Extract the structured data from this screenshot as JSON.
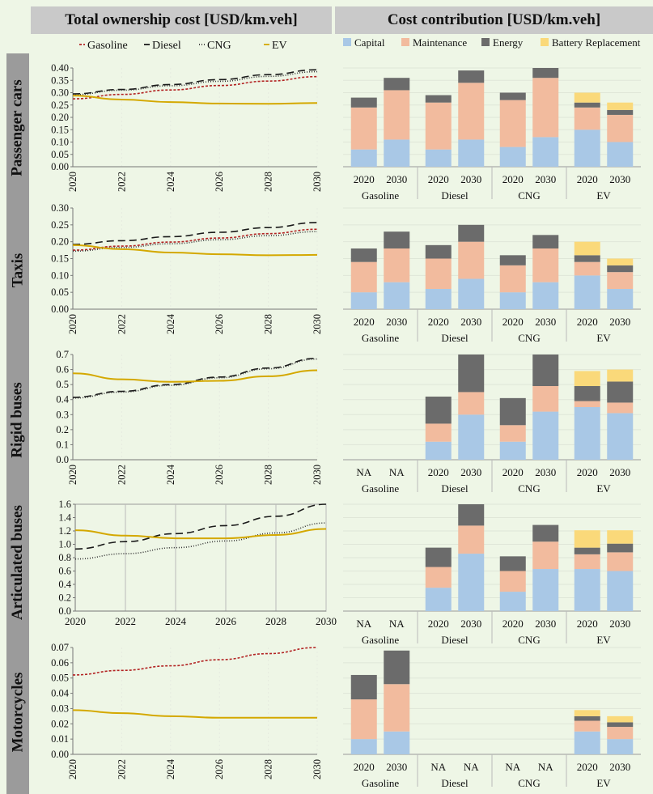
{
  "headers": {
    "left": "Total ownership cost [USD/km.veh]",
    "right": "Cost contribution [USD/km.veh]"
  },
  "line_legend": [
    {
      "key": "Gasoline",
      "label": "Gasoline",
      "color": "#b22222",
      "dash": "3,2"
    },
    {
      "key": "Diesel",
      "label": "Diesel",
      "color": "#1a1a1a",
      "dash": "9,5"
    },
    {
      "key": "CNG",
      "label": "CNG",
      "color": "#333333",
      "dash": "1,2"
    },
    {
      "key": "EV",
      "label": "EV",
      "color": "#d4a800",
      "dash": ""
    }
  ],
  "bar_legend": [
    {
      "key": "capital",
      "label": "Capital",
      "color": "#a9c8e6"
    },
    {
      "key": "maintenance",
      "label": "Maintenance",
      "color": "#f2bb9e"
    },
    {
      "key": "energy",
      "label": "Energy",
      "color": "#6b6b6b"
    },
    {
      "key": "battery",
      "label": "Battery Replacement",
      "color": "#fad97a"
    }
  ],
  "bar_group_labels": [
    "Gasoline",
    "Diesel",
    "CNG",
    "EV"
  ],
  "bar_year_labels": [
    "2020",
    "2030"
  ],
  "na_label": "NA",
  "chart_data": [
    {
      "type": "line",
      "row_label": "Passenger cars",
      "x": [
        2020,
        2022,
        2024,
        2026,
        2028,
        2030
      ],
      "xticks": [
        "2020",
        "2022",
        "2024",
        "2026",
        "2028",
        "2030"
      ],
      "x_rotated": true,
      "yticks": [
        "0.00",
        "0.05",
        "0.10",
        "0.15",
        "0.20",
        "0.25",
        "0.30",
        "0.35",
        "0.40"
      ],
      "ylim": [
        0,
        0.4
      ],
      "grid": false,
      "series": [
        {
          "name": "Gasoline",
          "values": [
            0.275,
            0.293,
            0.311,
            0.329,
            0.347,
            0.365
          ]
        },
        {
          "name": "Diesel",
          "values": [
            0.295,
            0.313,
            0.333,
            0.353,
            0.373,
            0.393
          ]
        },
        {
          "name": "CNG",
          "values": [
            0.292,
            0.31,
            0.328,
            0.346,
            0.366,
            0.385
          ]
        },
        {
          "name": "EV",
          "values": [
            0.288,
            0.272,
            0.262,
            0.256,
            0.255,
            0.258
          ]
        }
      ]
    },
    {
      "type": "line",
      "row_label": "Taxis",
      "x": [
        2020,
        2022,
        2024,
        2026,
        2028,
        2030
      ],
      "xticks": [
        "2020",
        "2022",
        "2024",
        "2026",
        "2028",
        "2030"
      ],
      "x_rotated": true,
      "yticks": [
        "0.00",
        "0.05",
        "0.10",
        "0.15",
        "0.20",
        "0.25",
        "0.30"
      ],
      "ylim": [
        0,
        0.3
      ],
      "grid": false,
      "series": [
        {
          "name": "Gasoline",
          "values": [
            0.175,
            0.187,
            0.199,
            0.211,
            0.224,
            0.237
          ]
        },
        {
          "name": "Diesel",
          "values": [
            0.192,
            0.203,
            0.215,
            0.228,
            0.242,
            0.257
          ]
        },
        {
          "name": "CNG",
          "values": [
            0.172,
            0.183,
            0.194,
            0.206,
            0.218,
            0.23
          ]
        },
        {
          "name": "EV",
          "values": [
            0.19,
            0.178,
            0.168,
            0.163,
            0.16,
            0.161
          ]
        }
      ]
    },
    {
      "type": "line",
      "row_label": "Rigid buses",
      "x": [
        2020,
        2022,
        2024,
        2026,
        2028,
        2030
      ],
      "xticks": [
        "2020",
        "2022",
        "2024",
        "2026",
        "2028",
        "2030"
      ],
      "x_rotated": true,
      "yticks": [
        "0.0",
        "0.1",
        "0.2",
        "0.3",
        "0.4",
        "0.5",
        "0.6",
        "0.7"
      ],
      "ylim": [
        0,
        0.7
      ],
      "grid": false,
      "series": [
        {
          "name": "Diesel",
          "values": [
            0.415,
            0.455,
            0.5,
            0.55,
            0.61,
            0.675
          ]
        },
        {
          "name": "CNG",
          "values": [
            0.41,
            0.45,
            0.495,
            0.545,
            0.605,
            0.67
          ]
        },
        {
          "name": "EV",
          "values": [
            0.575,
            0.535,
            0.518,
            0.525,
            0.555,
            0.595
          ]
        }
      ]
    },
    {
      "type": "line",
      "row_label": "Articulated buses",
      "x": [
        2020,
        2022,
        2024,
        2026,
        2028,
        2030
      ],
      "xticks": [
        "2020",
        "2022",
        "2024",
        "2026",
        "2028",
        "2030"
      ],
      "x_rotated": false,
      "yticks": [
        "0.0",
        "0.2",
        "0.4",
        "0.6",
        "0.8",
        "1.0",
        "1.2",
        "1.4",
        "1.6"
      ],
      "ylim": [
        0,
        1.6
      ],
      "grid": true,
      "series": [
        {
          "name": "Diesel",
          "values": [
            0.93,
            1.04,
            1.16,
            1.28,
            1.42,
            1.6
          ]
        },
        {
          "name": "CNG",
          "values": [
            0.78,
            0.86,
            0.95,
            1.05,
            1.17,
            1.32
          ]
        },
        {
          "name": "EV",
          "values": [
            1.21,
            1.13,
            1.09,
            1.09,
            1.14,
            1.23
          ]
        }
      ]
    },
    {
      "type": "line",
      "row_label": "Motorcycles",
      "x": [
        2020,
        2022,
        2024,
        2026,
        2028,
        2030
      ],
      "xticks": [
        "2020",
        "2022",
        "2024",
        "2026",
        "2028",
        "2030"
      ],
      "x_rotated": true,
      "yticks": [
        "0.00",
        "0.01",
        "0.02",
        "0.03",
        "0.04",
        "0.05",
        "0.06",
        "0.07"
      ],
      "ylim": [
        0,
        0.07
      ],
      "grid": false,
      "series": [
        {
          "name": "Gasoline",
          "values": [
            0.052,
            0.055,
            0.058,
            0.062,
            0.066,
            0.07
          ]
        },
        {
          "name": "EV",
          "values": [
            0.029,
            0.027,
            0.025,
            0.024,
            0.024,
            0.024
          ]
        }
      ]
    },
    {
      "type": "bar",
      "stacked": true,
      "row_label": "Passenger cars",
      "ylim": [
        0,
        0.4
      ],
      "groups": [
        {
          "name": "Gasoline",
          "bars": [
            {
              "year": "2020",
              "capital": 0.07,
              "maintenance": 0.17,
              "energy": 0.04,
              "battery": 0
            },
            {
              "year": "2030",
              "capital": 0.11,
              "maintenance": 0.2,
              "energy": 0.05,
              "battery": 0
            }
          ]
        },
        {
          "name": "Diesel",
          "bars": [
            {
              "year": "2020",
              "capital": 0.07,
              "maintenance": 0.19,
              "energy": 0.03,
              "battery": 0
            },
            {
              "year": "2030",
              "capital": 0.11,
              "maintenance": 0.23,
              "energy": 0.05,
              "battery": 0
            }
          ]
        },
        {
          "name": "CNG",
          "bars": [
            {
              "year": "2020",
              "capital": 0.08,
              "maintenance": 0.19,
              "energy": 0.03,
              "battery": 0
            },
            {
              "year": "2030",
              "capital": 0.12,
              "maintenance": 0.24,
              "energy": 0.04,
              "battery": 0
            }
          ]
        },
        {
          "name": "EV",
          "bars": [
            {
              "year": "2020",
              "capital": 0.15,
              "maintenance": 0.09,
              "energy": 0.02,
              "battery": 0.04
            },
            {
              "year": "2030",
              "capital": 0.1,
              "maintenance": 0.11,
              "energy": 0.02,
              "battery": 0.03
            }
          ]
        }
      ]
    },
    {
      "type": "bar",
      "stacked": true,
      "row_label": "Taxis",
      "ylim": [
        0,
        0.3
      ],
      "groups": [
        {
          "name": "Gasoline",
          "bars": [
            {
              "year": "2020",
              "capital": 0.05,
              "maintenance": 0.09,
              "energy": 0.04,
              "battery": 0
            },
            {
              "year": "2030",
              "capital": 0.08,
              "maintenance": 0.1,
              "energy": 0.05,
              "battery": 0
            }
          ]
        },
        {
          "name": "Diesel",
          "bars": [
            {
              "year": "2020",
              "capital": 0.06,
              "maintenance": 0.09,
              "energy": 0.04,
              "battery": 0
            },
            {
              "year": "2030",
              "capital": 0.09,
              "maintenance": 0.11,
              "energy": 0.05,
              "battery": 0
            }
          ]
        },
        {
          "name": "CNG",
          "bars": [
            {
              "year": "2020",
              "capital": 0.05,
              "maintenance": 0.08,
              "energy": 0.03,
              "battery": 0
            },
            {
              "year": "2030",
              "capital": 0.08,
              "maintenance": 0.1,
              "energy": 0.04,
              "battery": 0
            }
          ]
        },
        {
          "name": "EV",
          "bars": [
            {
              "year": "2020",
              "capital": 0.1,
              "maintenance": 0.04,
              "energy": 0.02,
              "battery": 0.04
            },
            {
              "year": "2030",
              "capital": 0.06,
              "maintenance": 0.05,
              "energy": 0.02,
              "battery": 0.02
            }
          ]
        }
      ]
    },
    {
      "type": "bar",
      "stacked": true,
      "row_label": "Rigid buses",
      "ylim": [
        0,
        0.7
      ],
      "groups": [
        {
          "name": "Gasoline",
          "na": true,
          "bars": []
        },
        {
          "name": "Diesel",
          "bars": [
            {
              "year": "2020",
              "capital": 0.12,
              "maintenance": 0.12,
              "energy": 0.18,
              "battery": 0
            },
            {
              "year": "2030",
              "capital": 0.3,
              "maintenance": 0.15,
              "energy": 0.25,
              "battery": 0
            }
          ]
        },
        {
          "name": "CNG",
          "bars": [
            {
              "year": "2020",
              "capital": 0.12,
              "maintenance": 0.11,
              "energy": 0.18,
              "battery": 0
            },
            {
              "year": "2030",
              "capital": 0.32,
              "maintenance": 0.17,
              "energy": 0.21,
              "battery": 0
            }
          ]
        },
        {
          "name": "EV",
          "bars": [
            {
              "year": "2020",
              "capital": 0.35,
              "maintenance": 0.04,
              "energy": 0.1,
              "battery": 0.1
            },
            {
              "year": "2030",
              "capital": 0.31,
              "maintenance": 0.07,
              "energy": 0.14,
              "battery": 0.08
            }
          ]
        }
      ]
    },
    {
      "type": "bar",
      "stacked": true,
      "row_label": "Articulated buses",
      "ylim": [
        0,
        1.6
      ],
      "groups": [
        {
          "name": "Gasoline",
          "na": true,
          "bars": []
        },
        {
          "name": "Diesel",
          "bars": [
            {
              "year": "2020",
              "capital": 0.35,
              "maintenance": 0.31,
              "energy": 0.29,
              "battery": 0
            },
            {
              "year": "2030",
              "capital": 0.86,
              "maintenance": 0.42,
              "energy": 0.32,
              "battery": 0
            }
          ]
        },
        {
          "name": "CNG",
          "bars": [
            {
              "year": "2020",
              "capital": 0.29,
              "maintenance": 0.31,
              "energy": 0.22,
              "battery": 0
            },
            {
              "year": "2030",
              "capital": 0.63,
              "maintenance": 0.41,
              "energy": 0.25,
              "battery": 0
            }
          ]
        },
        {
          "name": "EV",
          "bars": [
            {
              "year": "2020",
              "capital": 0.63,
              "maintenance": 0.22,
              "energy": 0.1,
              "battery": 0.26
            },
            {
              "year": "2030",
              "capital": 0.6,
              "maintenance": 0.28,
              "energy": 0.13,
              "battery": 0.2
            }
          ]
        }
      ]
    },
    {
      "type": "bar",
      "stacked": true,
      "row_label": "Motorcycles",
      "ylim": [
        0,
        0.07
      ],
      "groups": [
        {
          "name": "Gasoline",
          "bars": [
            {
              "year": "2020",
              "capital": 0.01,
              "maintenance": 0.026,
              "energy": 0.016,
              "battery": 0
            },
            {
              "year": "2030",
              "capital": 0.015,
              "maintenance": 0.031,
              "energy": 0.022,
              "battery": 0
            }
          ]
        },
        {
          "name": "Diesel",
          "na": true,
          "bars": []
        },
        {
          "name": "CNG",
          "na": true,
          "bars": []
        },
        {
          "name": "EV",
          "bars": [
            {
              "year": "2020",
              "capital": 0.015,
              "maintenance": 0.007,
              "energy": 0.003,
              "battery": 0.004
            },
            {
              "year": "2030",
              "capital": 0.01,
              "maintenance": 0.008,
              "energy": 0.003,
              "battery": 0.004
            }
          ]
        }
      ]
    }
  ]
}
